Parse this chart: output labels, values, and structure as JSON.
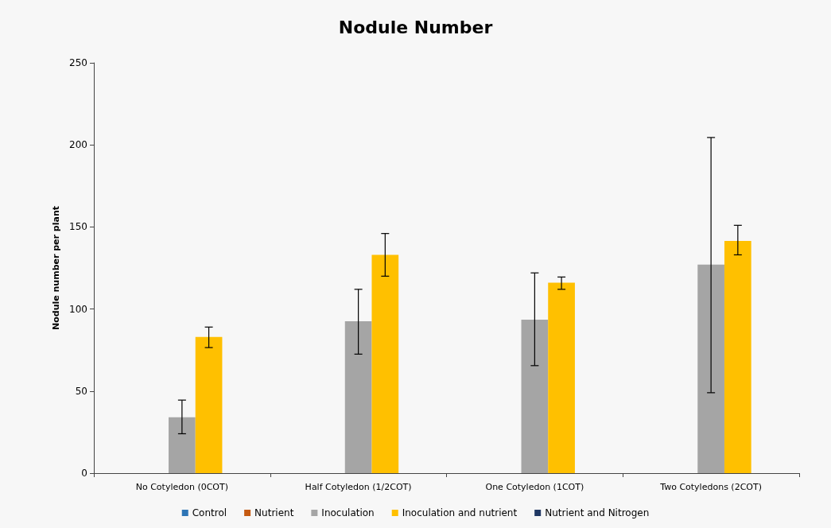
{
  "chart_data": {
    "type": "bar",
    "title": "Nodule Number",
    "ylabel": "Nodule number per plant",
    "categories": [
      "No Cotyledon (0COT)",
      "Half Cotyledon (1/2COT)",
      "One Cotyledon (1COT)",
      "Two Cotyledons (2COT)"
    ],
    "series": [
      {
        "name": "Control",
        "color": "#2e75b6",
        "values": [
          null,
          null,
          null,
          null
        ]
      },
      {
        "name": "Nutrient",
        "color": "#c55a11",
        "values": [
          null,
          null,
          null,
          null
        ]
      },
      {
        "name": "Inoculation",
        "color": "#a5a5a5",
        "values": [
          34,
          92.5,
          93.5,
          127
        ],
        "errors": [
          [
            24,
            44.5
          ],
          [
            72.5,
            112
          ],
          [
            65.5,
            122
          ],
          [
            49,
            204.5
          ]
        ]
      },
      {
        "name": "Inoculation and nutrient",
        "color": "#ffc000",
        "values": [
          83,
          133,
          116,
          141.5
        ],
        "errors": [
          [
            76.5,
            89
          ],
          [
            120,
            146
          ],
          [
            112,
            119.5
          ],
          [
            133,
            151
          ]
        ]
      },
      {
        "name": "Nutrient and Nitrogen",
        "color": "#203864",
        "values": [
          null,
          null,
          null,
          null
        ]
      }
    ],
    "ylim": [
      0,
      250
    ],
    "yticks": [
      0,
      50,
      100,
      150,
      200,
      250
    ],
    "grid": false,
    "legend": "bottom"
  }
}
